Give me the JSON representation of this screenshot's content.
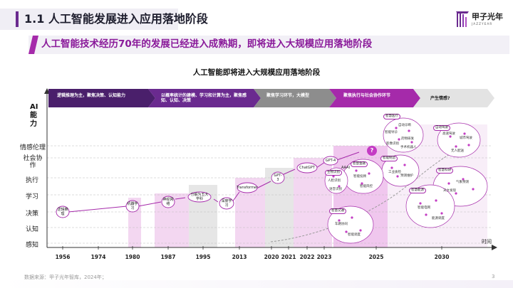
{
  "header": {
    "title": "1.1 人工智能发展进入应用落地阶段",
    "subtitle": "人工智能技术经历70年的发展已经进入成熟期，即将进入大规模应用落地阶段",
    "logo_name": "甲子光年",
    "logo_sub": "JAZZYEAR"
  },
  "chart": {
    "title": "人工智能即将进入大规模应用落地阶段",
    "y_axis_title": "AI能力",
    "x_axis_title": "时间",
    "y_levels": [
      "情感伦理",
      "社会协作",
      "执行",
      "学习",
      "决策",
      "认知",
      "感知"
    ],
    "x_years": [
      "1956",
      "1974",
      "1980",
      "1987",
      "1995",
      "2013",
      "2020",
      "2021",
      "2022",
      "2023",
      "2025",
      "2030"
    ],
    "phases": [
      {
        "label": "逻辑推理为主，聚焦决策、认知能力"
      },
      {
        "label": "以概率统计的建模、学习和计算为主，聚焦感知、认知、决策"
      },
      {
        "label": "聚焦学习环节，大模型"
      },
      {
        "label": "聚焦执行与社会协作环节"
      },
      {
        "label": "产生情感?"
      }
    ],
    "stages": [
      {
        "label": "逻辑推理"
      },
      {
        "label": "机器学习"
      },
      {
        "label": "神经网络"
      },
      {
        "label": "分解为五大学科"
      },
      {
        "label": "深度学习"
      },
      {
        "label": "Transformer"
      },
      {
        "label": "GPT-3"
      },
      {
        "label": "ChatGPT"
      },
      {
        "label": "GPT-4"
      },
      {
        "label": "AAAI"
      },
      {
        "label": "?"
      }
    ],
    "clusters": [
      {
        "title": "智慧医疗"
      },
      {
        "title": "自动驾驶"
      },
      {
        "title": "智能制造"
      },
      {
        "title": "智慧科研"
      },
      {
        "title": "智慧能源"
      },
      {
        "title": "智慧金融"
      },
      {
        "title": "生物识别"
      },
      {
        "title": "智慧交通"
      }
    ],
    "apps": [
      {
        "label": "自动诊断"
      },
      {
        "label": "智能导诊"
      },
      {
        "label": "药物研发"
      },
      {
        "label": "影像识别"
      },
      {
        "label": "手术机器人"
      },
      {
        "label": "高速驾驶"
      },
      {
        "label": "城市驾驶"
      },
      {
        "label": "无人配送"
      },
      {
        "label": "工业质检"
      },
      {
        "label": "预测维护"
      },
      {
        "label": "气象预测"
      },
      {
        "label": "天文发现"
      },
      {
        "label": "智能电网"
      },
      {
        "label": "能源调度"
      },
      {
        "label": "智能投顾"
      },
      {
        "label": "智能风控"
      },
      {
        "label": "人脸识别"
      },
      {
        "label": "语音识别"
      },
      {
        "label": "车路协同"
      },
      {
        "label": "智能调度"
      }
    ],
    "colors": {
      "accent": "#a52aaa",
      "dark_purple": "#4a1f6b",
      "pink_band": "#f3d7f1",
      "gray_band": "#e4e4e4"
    }
  },
  "footer": {
    "source": "数据来源：甲子光年智库，2024年；",
    "page": "3"
  }
}
